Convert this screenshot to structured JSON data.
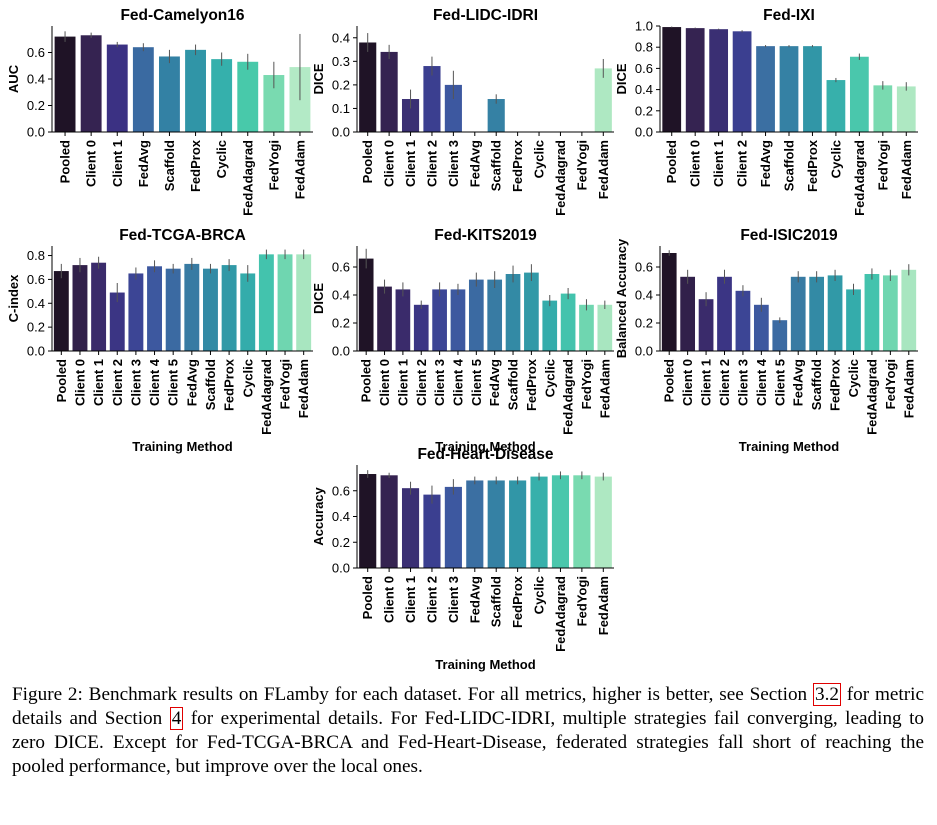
{
  "figure": {
    "caption": {
      "label": "Figure 2:",
      "text_1": " Benchmark results on FLamby for each dataset. For all metrics, higher is better, see Section ",
      "ref_1": "3.2",
      "text_2": " for metric details and Section ",
      "ref_2": "4",
      "text_3": " for experimental details. For Fed-LIDC-IDRI, multiple strategies fail converging, leading to zero DICE. Except for Fed-TCGA-BRCA and Fed-Heart-Disease, federated strategies fall short of reaching the pooled performance, but improve over the local ones."
    },
    "xlabel": "Training Method"
  },
  "chart_data": [
    {
      "type": "bar",
      "title": "Fed-Camelyon16",
      "ylabel": "AUC",
      "ylim": [
        0,
        0.8
      ],
      "yticks": [
        "0.0",
        "0.2",
        "0.4",
        "0.6"
      ],
      "categories": [
        "Pooled",
        "Client 0",
        "Client 1",
        "FedAvg",
        "Scaffold",
        "FedProx",
        "Cyclic",
        "FedAdagrad",
        "FedYogi",
        "FedAdam"
      ],
      "values": [
        0.72,
        0.73,
        0.66,
        0.64,
        0.57,
        0.62,
        0.55,
        0.53,
        0.43,
        0.49
      ],
      "errors": [
        0.04,
        0.02,
        0.02,
        0.03,
        0.05,
        0.04,
        0.05,
        0.06,
        0.1,
        0.25
      ],
      "colors": [
        "#1f1326",
        "#352351",
        "#3b3183",
        "#3a6aa1",
        "#3381a4",
        "#3095a7",
        "#35b0ac",
        "#48c9aa",
        "#79dab0",
        "#b3eac6"
      ]
    },
    {
      "type": "bar",
      "title": "Fed-LIDC-IDRI",
      "ylabel": "DICE",
      "ylim": [
        0,
        0.45
      ],
      "yticks": [
        "0.0",
        "0.1",
        "0.2",
        "0.3",
        "0.4"
      ],
      "categories": [
        "Pooled",
        "Client 0",
        "Client 1",
        "Client 2",
        "Client 3",
        "FedAvg",
        "Scaffold",
        "FedProx",
        "Cyclic",
        "FedAdagrad",
        "FedYogi",
        "FedAdam"
      ],
      "values": [
        0.38,
        0.34,
        0.14,
        0.28,
        0.2,
        0.0,
        0.14,
        0.0,
        0.0,
        0.0,
        0.0,
        0.27
      ],
      "errors": [
        0.04,
        0.03,
        0.04,
        0.04,
        0.06,
        0,
        0.02,
        0,
        0,
        0,
        0,
        0.04
      ],
      "colors": [
        "#1f1326",
        "#352351",
        "#3a2f73",
        "#3b3f90",
        "#3d58a0",
        "#3b6fa2",
        "#3581a4",
        "#3196a7",
        "#37b0ab",
        "#4ac7ac",
        "#79dab0",
        "#aee8c2"
      ]
    },
    {
      "type": "bar",
      "title": "Fed-IXI",
      "ylabel": "DICE",
      "ylim": [
        0,
        1.0
      ],
      "yticks": [
        "0.0",
        "0.2",
        "0.4",
        "0.6",
        "0.8",
        "1.0"
      ],
      "categories": [
        "Pooled",
        "Client 0",
        "Client 1",
        "Client 2",
        "FedAvg",
        "Scaffold",
        "FedProx",
        "Cyclic",
        "FedAdagrad",
        "FedYogi",
        "FedAdam"
      ],
      "values": [
        0.99,
        0.98,
        0.97,
        0.95,
        0.81,
        0.81,
        0.81,
        0.49,
        0.71,
        0.44,
        0.43
      ],
      "errors": [
        0.005,
        0.005,
        0.005,
        0.01,
        0.01,
        0.01,
        0.01,
        0.02,
        0.03,
        0.04,
        0.04
      ],
      "colors": [
        "#1f1326",
        "#352351",
        "#3a2f73",
        "#3b3f90",
        "#3b6fa2",
        "#3581a4",
        "#3196a7",
        "#37b0ab",
        "#4ac7ac",
        "#79dab0",
        "#aee8c2"
      ]
    },
    {
      "type": "bar",
      "title": "Fed-TCGA-BRCA",
      "ylabel": "C-index",
      "ylim": [
        0,
        0.88
      ],
      "yticks": [
        "0.0",
        "0.2",
        "0.4",
        "0.6",
        "0.8"
      ],
      "categories": [
        "Pooled",
        "Client 0",
        "Client 1",
        "Client 2",
        "Client 3",
        "Client 4",
        "Client 5",
        "FedAvg",
        "Scaffold",
        "FedProx",
        "Cyclic",
        "FedAdagrad",
        "FedYogi",
        "FedAdam"
      ],
      "values": [
        0.67,
        0.72,
        0.74,
        0.49,
        0.65,
        0.71,
        0.69,
        0.73,
        0.69,
        0.72,
        0.65,
        0.81,
        0.81,
        0.81
      ],
      "errors": [
        0.06,
        0.06,
        0.05,
        0.08,
        0.05,
        0.05,
        0.04,
        0.05,
        0.04,
        0.05,
        0.07,
        0.04,
        0.04,
        0.04
      ],
      "colors": [
        "#1f1326",
        "#31204a",
        "#3a2b6b",
        "#3b3584",
        "#3c4595",
        "#3d589f",
        "#3b6aa2",
        "#387ba3",
        "#338aa5",
        "#3199a7",
        "#34acab",
        "#43c3ad",
        "#6fd6b0",
        "#a8e6c0"
      ]
    },
    {
      "type": "bar",
      "title": "Fed-KITS2019",
      "ylabel": "DICE",
      "ylim": [
        0,
        0.75
      ],
      "yticks": [
        "0.0",
        "0.2",
        "0.4",
        "0.6"
      ],
      "categories": [
        "Pooled",
        "Client 0",
        "Client 1",
        "Client 2",
        "Client 3",
        "Client 4",
        "Client 5",
        "FedAvg",
        "Scaffold",
        "FedProx",
        "Cyclic",
        "FedAdagrad",
        "FedYogi",
        "FedAdam"
      ],
      "values": [
        0.66,
        0.46,
        0.44,
        0.33,
        0.44,
        0.44,
        0.51,
        0.51,
        0.55,
        0.56,
        0.36,
        0.41,
        0.33,
        0.33
      ],
      "errors": [
        0.07,
        0.05,
        0.05,
        0.03,
        0.05,
        0.04,
        0.05,
        0.06,
        0.06,
        0.06,
        0.04,
        0.04,
        0.04,
        0.03
      ],
      "colors": [
        "#1f1326",
        "#31204a",
        "#3a2b6b",
        "#3b3584",
        "#3c4595",
        "#3d589f",
        "#3b6aa2",
        "#387ba3",
        "#338aa5",
        "#3199a7",
        "#34acab",
        "#43c3ad",
        "#6fd6b0",
        "#a8e6c0"
      ]
    },
    {
      "type": "bar",
      "title": "Fed-ISIC2019",
      "ylabel": "Balanced Accuracy",
      "ylim": [
        0,
        0.75
      ],
      "yticks": [
        "0.0",
        "0.2",
        "0.4",
        "0.6"
      ],
      "categories": [
        "Pooled",
        "Client 0",
        "Client 1",
        "Client 2",
        "Client 3",
        "Client 4",
        "Client 5",
        "FedAvg",
        "Scaffold",
        "FedProx",
        "Cyclic",
        "FedAdagrad",
        "FedYogi",
        "FedAdam"
      ],
      "values": [
        0.7,
        0.53,
        0.37,
        0.53,
        0.43,
        0.33,
        0.22,
        0.53,
        0.53,
        0.54,
        0.44,
        0.55,
        0.54,
        0.58
      ],
      "errors": [
        0.02,
        0.05,
        0.05,
        0.05,
        0.04,
        0.05,
        0.02,
        0.04,
        0.04,
        0.04,
        0.04,
        0.04,
        0.04,
        0.04
      ],
      "colors": [
        "#1f1326",
        "#31204a",
        "#3a2b6b",
        "#3b3584",
        "#3c4595",
        "#3d589f",
        "#3b6aa2",
        "#387ba3",
        "#338aa5",
        "#3199a7",
        "#34acab",
        "#43c3ad",
        "#6fd6b0",
        "#a8e6c0"
      ]
    },
    {
      "type": "bar",
      "title": "Fed-Heart-Disease",
      "ylabel": "Accuracy",
      "ylim": [
        0,
        0.8
      ],
      "yticks": [
        "0.0",
        "0.2",
        "0.4",
        "0.6"
      ],
      "categories": [
        "Pooled",
        "Client 0",
        "Client 1",
        "Client 2",
        "Client 3",
        "FedAvg",
        "Scaffold",
        "FedProx",
        "Cyclic",
        "FedAdagrad",
        "FedYogi",
        "FedAdam"
      ],
      "values": [
        0.73,
        0.72,
        0.62,
        0.57,
        0.63,
        0.68,
        0.68,
        0.68,
        0.71,
        0.72,
        0.72,
        0.71
      ],
      "errors": [
        0.03,
        0.02,
        0.05,
        0.07,
        0.06,
        0.03,
        0.03,
        0.03,
        0.03,
        0.03,
        0.03,
        0.03
      ],
      "colors": [
        "#1f1326",
        "#352351",
        "#3a2f73",
        "#3b3f90",
        "#3d58a0",
        "#3b6fa2",
        "#3581a4",
        "#3196a7",
        "#37b0ab",
        "#4ac7ac",
        "#79dab0",
        "#aee8c2"
      ]
    }
  ]
}
